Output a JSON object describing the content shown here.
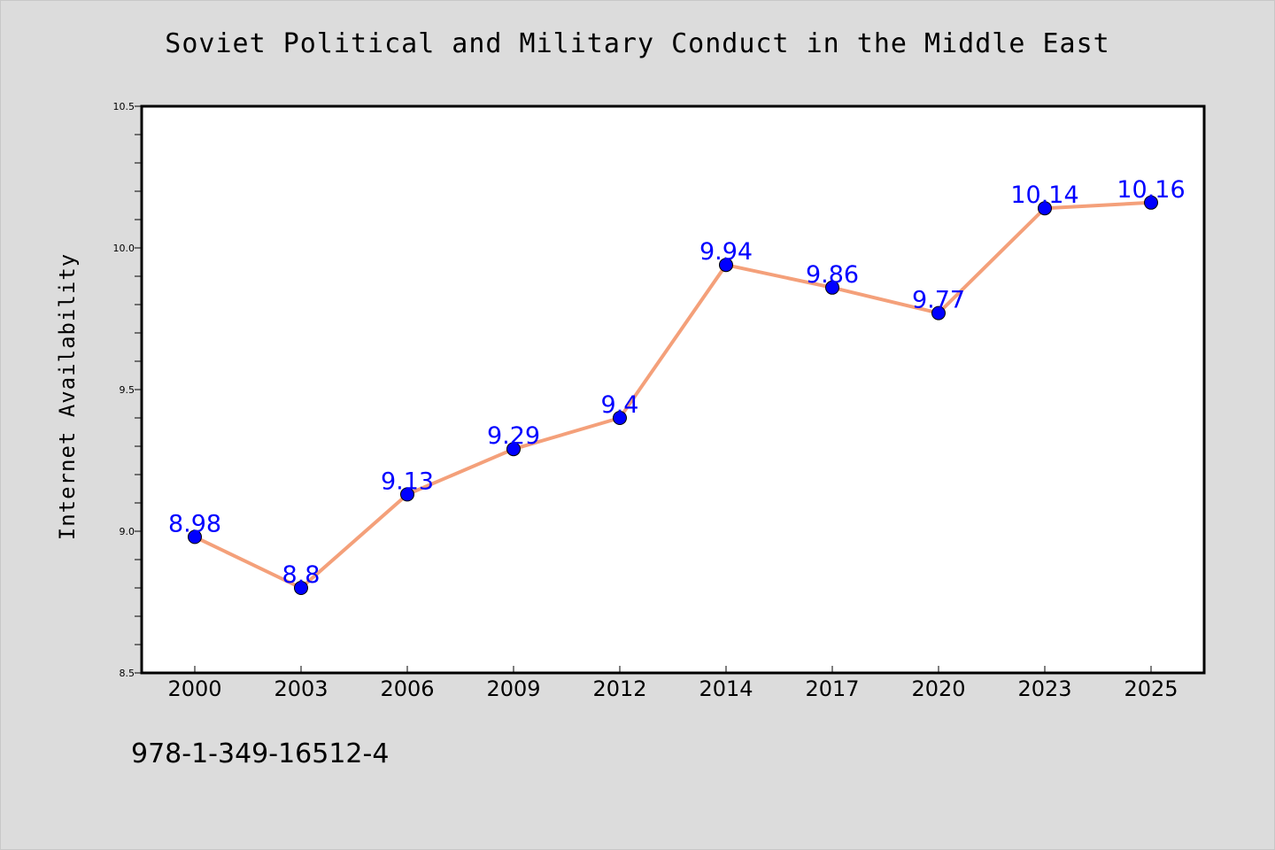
{
  "chart_data": {
    "type": "line",
    "title": "Soviet Political and Military Conduct in the Middle East",
    "xlabel": "",
    "ylabel": "Internet Availability",
    "categories": [
      "2000",
      "2003",
      "2006",
      "2009",
      "2012",
      "2014",
      "2017",
      "2020",
      "2023",
      "2025"
    ],
    "series": [
      {
        "values": [
          8.98,
          8.8,
          9.13,
          9.29,
          9.4,
          9.94,
          9.86,
          9.77,
          10.14,
          10.16
        ],
        "data_labels": [
          "8.98",
          "8.8",
          "9.13",
          "9.29",
          "9.4",
          "9.94",
          "9.86",
          "9.77",
          "10.14",
          "10.16"
        ]
      }
    ],
    "ylim": [
      8.5,
      10.5
    ],
    "yticks": [
      "8.5",
      "9.0",
      "9.5",
      "10.0",
      "10.5"
    ],
    "grid": false,
    "colors": {
      "line": "#f4a07a",
      "marker": "#0000ff",
      "data_label": "#0000ff",
      "background": "#dcdcdc",
      "plot_background": "#ffffff"
    }
  },
  "footnote": "978-1-349-16512-4"
}
